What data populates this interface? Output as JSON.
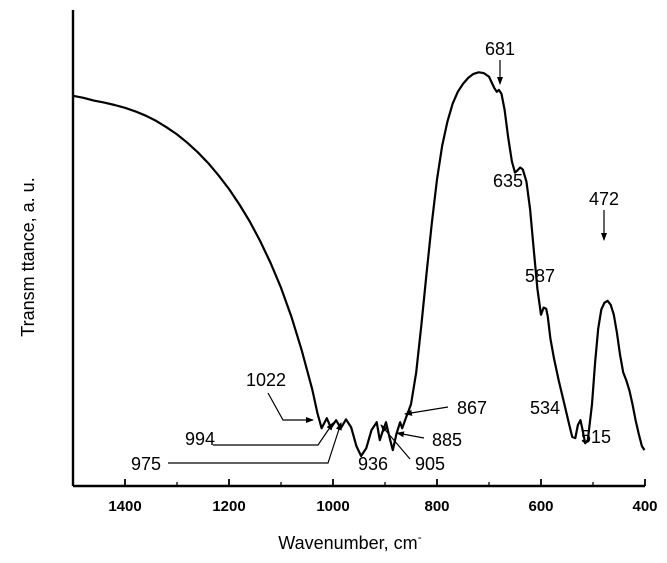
{
  "chart_data": {
    "type": "line",
    "xlabel": "Wavenumber, cm",
    "xlabel_superscript": "-",
    "ylabel": "Transm ttance, a. u.",
    "xlim": [
      1500,
      400
    ],
    "x_reversed": true,
    "y_ticks_visible": false,
    "grid": false,
    "legend": "none",
    "x_ticks": [
      1400,
      1200,
      1000,
      800,
      600,
      400
    ],
    "x_tick_labels": [
      "1400",
      "1200",
      "1000",
      "800",
      "600",
      "400"
    ],
    "series": [
      {
        "x": [
          1500,
          1480,
          1460,
          1440,
          1420,
          1400,
          1380,
          1360,
          1340,
          1320,
          1300,
          1280,
          1260,
          1240,
          1220,
          1200,
          1180,
          1160,
          1140,
          1120,
          1100,
          1080,
          1060,
          1040,
          1030,
          1022,
          1012,
          1004,
          994,
          985,
          975,
          965,
          955,
          946,
          936,
          926,
          916,
          910,
          905,
          898,
          891,
          885,
          878,
          871,
          867,
          860,
          850,
          840,
          830,
          820,
          810,
          800,
          790,
          780,
          770,
          760,
          750,
          740,
          730,
          720,
          710,
          700,
          690,
          685,
          681,
          676,
          670,
          663,
          656,
          650,
          645,
          640,
          635,
          628,
          621,
          614,
          607,
          600,
          595,
          590,
          587,
          582,
          575,
          566,
          555,
          545,
          540,
          534,
          529,
          524,
          520,
          515,
          510,
          502,
          496,
          490,
          484,
          478,
          472,
          466,
          460,
          454,
          448,
          442,
          436,
          430,
          424,
          418,
          412,
          406,
          401
        ],
        "y": [
          91.5,
          91.0,
          90.3,
          89.8,
          89.2,
          88.5,
          87.6,
          86.5,
          85.2,
          83.6,
          81.8,
          79.7,
          77.3,
          74.6,
          71.5,
          68.1,
          64.2,
          59.9,
          55.0,
          49.5,
          43.3,
          36.0,
          27.5,
          17.8,
          11.8,
          8.0,
          10.5,
          8.1,
          10.0,
          8.0,
          10.2,
          8.2,
          3.5,
          1.0,
          3.0,
          7.5,
          9.5,
          5.0,
          7.0,
          9.5,
          5.5,
          2.5,
          6.5,
          9.5,
          8.0,
          10.5,
          14.0,
          22.0,
          34.0,
          47.0,
          59.5,
          70.5,
          79.0,
          85.0,
          89.5,
          92.5,
          94.5,
          96.0,
          97.0,
          97.4,
          97.2,
          96.3,
          93.5,
          92.5,
          93.0,
          92.0,
          88.0,
          81.0,
          75.0,
          72.2,
          72.8,
          73.5,
          73.0,
          70.0,
          63.0,
          53.0,
          43.0,
          36.5,
          38.3,
          38.0,
          36.0,
          30.5,
          25.5,
          20.0,
          14.0,
          8.5,
          5.8,
          5.5,
          8.8,
          10.0,
          7.5,
          4.2,
          5.0,
          14.0,
          24.5,
          33.0,
          37.8,
          39.5,
          40.0,
          39.0,
          36.5,
          32.0,
          26.5,
          22.0,
          20.0,
          17.5,
          14.0,
          10.0,
          6.5,
          3.5,
          2.5
        ]
      }
    ],
    "annotations": [
      {
        "label": "681",
        "x": 681
      },
      {
        "label": "635",
        "x": 635
      },
      {
        "label": "587",
        "x": 587
      },
      {
        "label": "472",
        "x": 472
      },
      {
        "label": "534",
        "x": 534
      },
      {
        "label": "515",
        "x": 515
      },
      {
        "label": "1022",
        "x": 1022
      },
      {
        "label": "994",
        "x": 994
      },
      {
        "label": "975",
        "x": 975
      },
      {
        "label": "936",
        "x": 936
      },
      {
        "label": "905",
        "x": 905
      },
      {
        "label": "885",
        "x": 885
      },
      {
        "label": "867",
        "x": 867
      }
    ]
  }
}
